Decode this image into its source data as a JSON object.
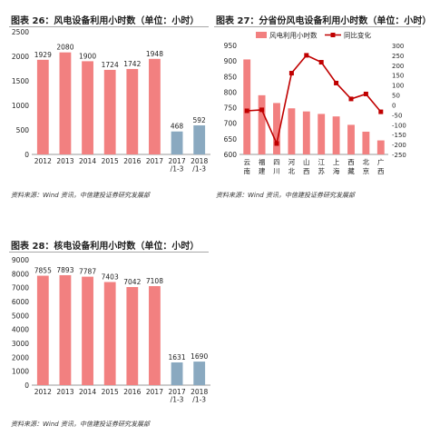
{
  "figures": [
    {
      "title": "图表 26：风电设备利用小时数（单位：小时）",
      "source": "资料来源：Wind 资讯，中信建投证券研究发展部"
    },
    {
      "title": "图表 27：分省份风电设备利用小时数（单位：小时）",
      "source": "资料来源：Wind 资讯，中信建投证券研究发展部"
    },
    {
      "title": "图表 28：核电设备利用小时数（单位：小时）",
      "source": "资料来源：Wind 资讯，中信建投证券研究发展部"
    }
  ],
  "chart_data": [
    {
      "type": "bar",
      "title": "",
      "categories": [
        "2012",
        "2013",
        "2014",
        "2015",
        "2016",
        "2017",
        "2017\n/1-3",
        "2018\n/1-3"
      ],
      "values": [
        1929,
        2080,
        1900,
        1724,
        1742,
        1948,
        468,
        592
      ],
      "data_labels": [
        "1929",
        "2080",
        "1900",
        "1724",
        "1742",
        "1948",
        "468",
        "592"
      ],
      "ylim": [
        0,
        2500
      ],
      "yticks": [
        "0",
        "500",
        "1000",
        "1500",
        "2000",
        "2500"
      ],
      "colors": [
        "#f28080",
        "#f28080",
        "#f28080",
        "#f28080",
        "#f28080",
        "#f28080",
        "#8aa9c0",
        "#8aa9c0"
      ],
      "grid": false
    },
    {
      "type": "bar",
      "title": "",
      "categories": [
        "云南",
        "福建",
        "四川",
        "河北",
        "山西",
        "江苏",
        "上海",
        "西藏",
        "北京",
        "广西"
      ],
      "series": [
        {
          "name": "风电利用小时数",
          "chart": "bar",
          "axis": "left",
          "color": "#f28080",
          "values": [
            905,
            790,
            765,
            748,
            738,
            730,
            722,
            695,
            673,
            645
          ]
        },
        {
          "name": "同比变化",
          "chart": "line",
          "axis": "right",
          "color": "#c00000",
          "values": [
            -30,
            -25,
            -195,
            160,
            250,
            215,
            110,
            30,
            55,
            -35
          ]
        }
      ],
      "y_left": {
        "ylim": [
          600,
          950
        ],
        "yticks": [
          "600",
          "650",
          "700",
          "750",
          "800",
          "850",
          "900",
          "950"
        ]
      },
      "y_right": {
        "ylim": [
          -250,
          300
        ],
        "yticks": [
          "-250",
          "-200",
          "-150",
          "-100",
          "-50",
          "0",
          "50",
          "100",
          "150",
          "200",
          "250",
          "300"
        ]
      },
      "legend": "top",
      "grid": false
    },
    {
      "type": "bar",
      "title": "",
      "categories": [
        "2012",
        "2013",
        "2014",
        "2015",
        "2016",
        "2017",
        "2017\n/1-3",
        "2018\n/1-3"
      ],
      "values": [
        7855,
        7893,
        7787,
        7403,
        7042,
        7108,
        1631,
        1690
      ],
      "data_labels": [
        "7855",
        "7893",
        "7787",
        "7403",
        "7042",
        "7108",
        "1631",
        "1690"
      ],
      "ylim": [
        0,
        9000
      ],
      "yticks": [
        "0",
        "1000",
        "2000",
        "3000",
        "4000",
        "5000",
        "6000",
        "7000",
        "8000",
        "9000"
      ],
      "colors": [
        "#f28080",
        "#f28080",
        "#f28080",
        "#f28080",
        "#f28080",
        "#f28080",
        "#8aa9c0",
        "#8aa9c0"
      ],
      "grid": false
    }
  ]
}
